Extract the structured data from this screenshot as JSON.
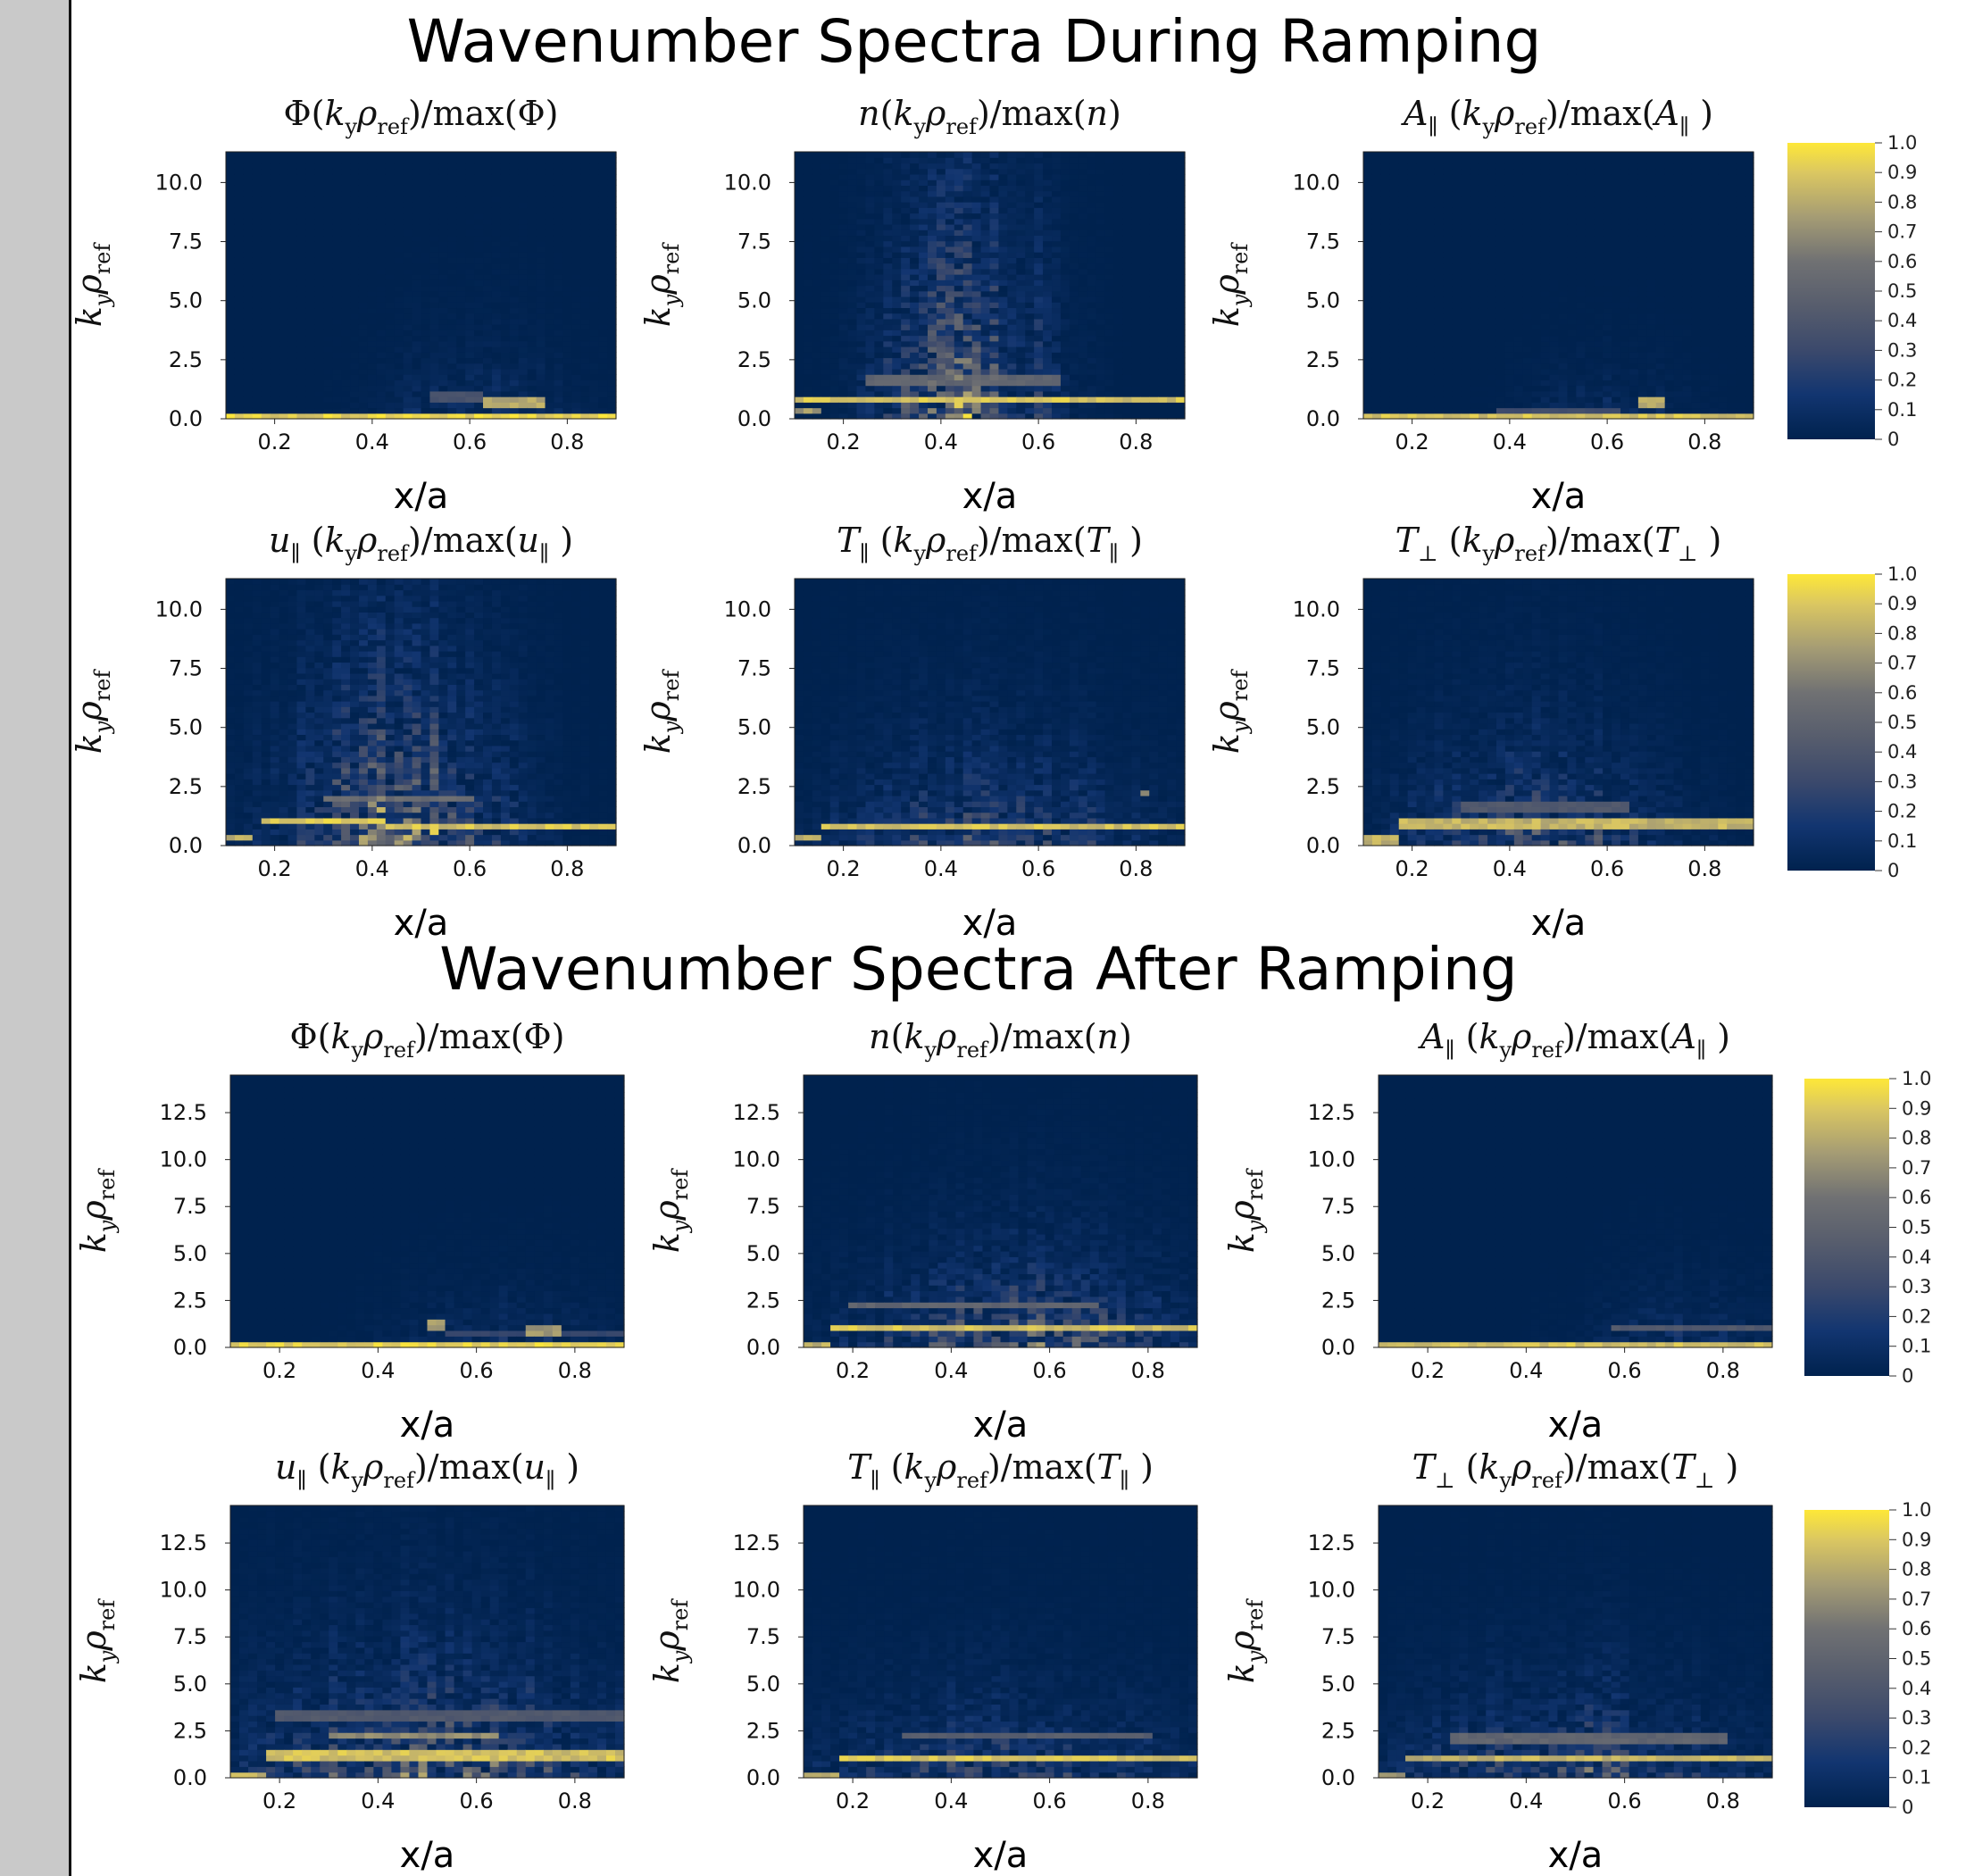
{
  "sections": [
    {
      "title": "Wavenumber Spectra During Ramping"
    },
    {
      "title": "Wavenumber Spectra  After Ramping"
    }
  ],
  "colors": {
    "low": "#00224e",
    "high": "#fee838"
  },
  "chart_data": [
    {
      "type": "heatmap",
      "title": "Φ(k_yρ_ref)/max(Φ)",
      "section": "During Ramping",
      "xlabel": "x/a",
      "ylabel": "k_yρ_ref",
      "xlim": [
        0.1,
        0.9
      ],
      "ylim": [
        0,
        11.3
      ],
      "xticks": [
        "0.2",
        "0.4",
        "0.6",
        "0.8"
      ],
      "yticks": [
        "0.0",
        "2.5",
        "5.0",
        "7.5",
        "10.0"
      ],
      "ytick_values": [
        0,
        2.5,
        5,
        7.5,
        10
      ],
      "colorbar": false,
      "features": [
        {
          "kind": "band",
          "x": [
            0.1,
            0.9
          ],
          "ky": 0.05,
          "value": 1.0
        },
        {
          "kind": "band",
          "x": [
            0.52,
            0.62
          ],
          "ky": 0.9,
          "value": 0.4
        },
        {
          "kind": "band",
          "x": [
            0.62,
            0.76
          ],
          "ky": 0.7,
          "value": 0.85
        }
      ],
      "noise": {
        "x_center": 0.62,
        "x_width": 0.18,
        "ky_scale": 2,
        "amp": 0.15
      }
    },
    {
      "type": "heatmap",
      "title": "n(k_yρ_ref)/max(n)",
      "section": "During Ramping",
      "xlabel": "x/a",
      "ylabel": "k_yρ_ref",
      "xlim": [
        0.1,
        0.9
      ],
      "ylim": [
        0,
        11.3
      ],
      "xticks": [
        "0.2",
        "0.4",
        "0.6",
        "0.8"
      ],
      "yticks": [
        "0.0",
        "2.5",
        "5.0",
        "7.5",
        "10.0"
      ],
      "ytick_values": [
        0,
        2.5,
        5,
        7.5,
        10
      ],
      "colorbar": false,
      "features": [
        {
          "kind": "band",
          "x": [
            0.1,
            0.9
          ],
          "ky": 0.8,
          "value": 0.95
        },
        {
          "kind": "band",
          "x": [
            0.1,
            0.15
          ],
          "ky": 0.3,
          "value": 0.8
        },
        {
          "kind": "band",
          "x": [
            0.25,
            0.65
          ],
          "ky": 1.7,
          "value": 0.55
        }
      ],
      "noise": {
        "x_center": 0.45,
        "x_width": 0.15,
        "ky_scale": 6,
        "amp": 0.6
      }
    },
    {
      "type": "heatmap",
      "title": "A∥(k_yρ_ref)/max(A∥)",
      "section": "During Ramping",
      "xlabel": "x/a",
      "ylabel": "k_yρ_ref",
      "xlim": [
        0.1,
        0.9
      ],
      "ylim": [
        0,
        11.3
      ],
      "xticks": [
        "0.2",
        "0.4",
        "0.6",
        "0.8"
      ],
      "yticks": [
        "0.0",
        "2.5",
        "5.0",
        "7.5",
        "10.0"
      ],
      "ytick_values": [
        0,
        2.5,
        5,
        7.5,
        10
      ],
      "colorbar": true,
      "colorbar_ticks": [
        "0",
        "0.1",
        "0.2",
        "0.3",
        "0.4",
        "0.5",
        "0.6",
        "0.7",
        "0.8",
        "0.9",
        "1.0"
      ],
      "features": [
        {
          "kind": "band",
          "x": [
            0.1,
            0.9
          ],
          "ky": 0.05,
          "value": 0.95
        },
        {
          "kind": "band",
          "x": [
            0.38,
            0.62
          ],
          "ky": 0.3,
          "value": 0.35
        },
        {
          "kind": "band",
          "x": [
            0.66,
            0.72
          ],
          "ky": 0.7,
          "value": 0.9
        }
      ],
      "noise": {
        "x_center": 0.6,
        "x_width": 0.15,
        "ky_scale": 1.5,
        "amp": 0.12
      }
    },
    {
      "type": "heatmap",
      "title": "u∥(k_yρ_ref)/max(u∥)",
      "section": "During Ramping",
      "xlabel": "x/a",
      "ylabel": "k_yρ_ref",
      "xlim": [
        0.1,
        0.9
      ],
      "ylim": [
        0,
        11.3
      ],
      "xticks": [
        "0.2",
        "0.4",
        "0.6",
        "0.8"
      ],
      "yticks": [
        "0.0",
        "2.5",
        "5.0",
        "7.5",
        "10.0"
      ],
      "ytick_values": [
        0,
        2.5,
        5,
        7.5,
        10
      ],
      "colorbar": false,
      "features": [
        {
          "kind": "band",
          "x": [
            0.1,
            0.15
          ],
          "ky": 0.3,
          "value": 0.9
        },
        {
          "kind": "band",
          "x": [
            0.18,
            0.42
          ],
          "ky": 1.1,
          "value": 1.0
        },
        {
          "kind": "band",
          "x": [
            0.42,
            0.9
          ],
          "ky": 0.8,
          "value": 0.95
        },
        {
          "kind": "band",
          "x": [
            0.3,
            0.6
          ],
          "ky": 2.0,
          "value": 0.6
        }
      ],
      "noise": {
        "x_center": 0.45,
        "x_width": 0.2,
        "ky_scale": 5,
        "amp": 0.6
      }
    },
    {
      "type": "heatmap",
      "title": "T∥(k_yρ_ref)/max(T∥)",
      "section": "During Ramping",
      "xlabel": "x/a",
      "ylabel": "k_yρ_ref",
      "xlim": [
        0.1,
        0.9
      ],
      "ylim": [
        0,
        11.3
      ],
      "xticks": [
        "0.2",
        "0.4",
        "0.6",
        "0.8"
      ],
      "yticks": [
        "0.0",
        "2.5",
        "5.0",
        "7.5",
        "10.0"
      ],
      "ytick_values": [
        0,
        2.5,
        5,
        7.5,
        10
      ],
      "colorbar": false,
      "features": [
        {
          "kind": "band",
          "x": [
            0.1,
            0.15
          ],
          "ky": 0.3,
          "value": 0.85
        },
        {
          "kind": "band",
          "x": [
            0.15,
            0.9
          ],
          "ky": 0.8,
          "value": 0.95
        },
        {
          "kind": "band",
          "x": [
            0.81,
            0.82
          ],
          "ky": 2.2,
          "value": 0.7
        }
      ],
      "noise": {
        "x_center": 0.5,
        "x_width": 0.3,
        "ky_scale": 3,
        "amp": 0.3
      }
    },
    {
      "type": "heatmap",
      "title": "T⊥(k_yρ_ref)/max(T⊥)",
      "section": "During Ramping",
      "xlabel": "x/a",
      "ylabel": "k_yρ_ref",
      "xlim": [
        0.1,
        0.9
      ],
      "ylim": [
        0,
        11.3
      ],
      "xticks": [
        "0.2",
        "0.4",
        "0.6",
        "0.8"
      ],
      "yticks": [
        "0.0",
        "2.5",
        "5.0",
        "7.5",
        "10.0"
      ],
      "ytick_values": [
        0,
        2.5,
        5,
        7.5,
        10
      ],
      "colorbar": true,
      "colorbar_ticks": [
        "0",
        "0.1",
        "0.2",
        "0.3",
        "0.4",
        "0.5",
        "0.6",
        "0.7",
        "0.8",
        "0.9",
        "1.0"
      ],
      "features": [
        {
          "kind": "band",
          "x": [
            0.1,
            0.18
          ],
          "ky": 0.2,
          "value": 0.9
        },
        {
          "kind": "band",
          "x": [
            0.18,
            0.9
          ],
          "ky": 0.9,
          "value": 0.9
        },
        {
          "kind": "band",
          "x": [
            0.3,
            0.65
          ],
          "ky": 1.6,
          "value": 0.45
        }
      ],
      "noise": {
        "x_center": 0.45,
        "x_width": 0.25,
        "ky_scale": 3,
        "amp": 0.35
      }
    },
    {
      "type": "heatmap",
      "title": "Φ(k_yρ_ref)/max(Φ)",
      "section": "After Ramping",
      "xlabel": "x/a",
      "ylabel": "k_yρ_ref",
      "xlim": [
        0.1,
        0.9
      ],
      "ylim": [
        0,
        14.5
      ],
      "xticks": [
        "0.2",
        "0.4",
        "0.6",
        "0.8"
      ],
      "yticks": [
        "0.0",
        "2.5",
        "5.0",
        "7.5",
        "10.0",
        "12.5"
      ],
      "ytick_values": [
        0,
        2.5,
        5,
        7.5,
        10,
        12.5
      ],
      "colorbar": false,
      "features": [
        {
          "kind": "band",
          "x": [
            0.1,
            0.9
          ],
          "ky": 0.05,
          "value": 1.0
        },
        {
          "kind": "band",
          "x": [
            0.5,
            0.54
          ],
          "ky": 1.2,
          "value": 0.8
        },
        {
          "kind": "band",
          "x": [
            0.7,
            0.78
          ],
          "ky": 0.9,
          "value": 0.8
        },
        {
          "kind": "band",
          "x": [
            0.54,
            0.9
          ],
          "ky": 0.8,
          "value": 0.3
        }
      ],
      "noise": {
        "x_center": 0.65,
        "x_width": 0.2,
        "ky_scale": 2,
        "amp": 0.15
      }
    },
    {
      "type": "heatmap",
      "title": "n(k_yρ_ref)/max(n)",
      "section": "After Ramping",
      "xlabel": "x/a",
      "ylabel": "k_yρ_ref",
      "xlim": [
        0.1,
        0.9
      ],
      "ylim": [
        0,
        14.5
      ],
      "xticks": [
        "0.2",
        "0.4",
        "0.6",
        "0.8"
      ],
      "yticks": [
        "0.0",
        "2.5",
        "5.0",
        "7.5",
        "10.0",
        "12.5"
      ],
      "ytick_values": [
        0,
        2.5,
        5,
        7.5,
        10,
        12.5
      ],
      "colorbar": false,
      "features": [
        {
          "kind": "band",
          "x": [
            0.1,
            0.16
          ],
          "ky": 0.2,
          "value": 0.9
        },
        {
          "kind": "band",
          "x": [
            0.16,
            0.9
          ],
          "ky": 1.1,
          "value": 0.95
        },
        {
          "kind": "band",
          "x": [
            0.2,
            0.7
          ],
          "ky": 2.2,
          "value": 0.55
        }
      ],
      "noise": {
        "x_center": 0.55,
        "x_width": 0.3,
        "ky_scale": 3,
        "amp": 0.45
      }
    },
    {
      "type": "heatmap",
      "title": "A∥(k_yρ_ref)/max(A∥)",
      "section": "After Ramping",
      "xlabel": "x/a",
      "ylabel": "k_yρ_ref",
      "xlim": [
        0.1,
        0.9
      ],
      "ylim": [
        0,
        14.5
      ],
      "xticks": [
        "0.2",
        "0.4",
        "0.6",
        "0.8"
      ],
      "yticks": [
        "0.0",
        "2.5",
        "5.0",
        "7.5",
        "10.0",
        "12.5"
      ],
      "ytick_values": [
        0,
        2.5,
        5,
        7.5,
        10,
        12.5
      ],
      "colorbar": true,
      "colorbar_ticks": [
        "0",
        "0.1",
        "0.2",
        "0.3",
        "0.4",
        "0.5",
        "0.6",
        "0.7",
        "0.8",
        "0.9",
        "1.0"
      ],
      "features": [
        {
          "kind": "band",
          "x": [
            0.1,
            0.9
          ],
          "ky": 0.05,
          "value": 0.95
        },
        {
          "kind": "band",
          "x": [
            0.58,
            0.9
          ],
          "ky": 1.0,
          "value": 0.45
        }
      ],
      "noise": {
        "x_center": 0.72,
        "x_width": 0.18,
        "ky_scale": 2,
        "amp": 0.15
      }
    },
    {
      "type": "heatmap",
      "title": "u∥(k_yρ_ref)/max(u∥)",
      "section": "After Ramping",
      "xlabel": "x/a",
      "ylabel": "k_yρ_ref",
      "xlim": [
        0.1,
        0.9
      ],
      "ylim": [
        0,
        14.5
      ],
      "xticks": [
        "0.2",
        "0.4",
        "0.6",
        "0.8"
      ],
      "yticks": [
        "0.0",
        "2.5",
        "5.0",
        "7.5",
        "10.0",
        "12.5"
      ],
      "ytick_values": [
        0,
        2.5,
        5,
        7.5,
        10,
        12.5
      ],
      "colorbar": false,
      "features": [
        {
          "kind": "band",
          "x": [
            0.1,
            0.18
          ],
          "ky": 0.2,
          "value": 0.9
        },
        {
          "kind": "band",
          "x": [
            0.18,
            0.9
          ],
          "ky": 1.2,
          "value": 0.95
        },
        {
          "kind": "band",
          "x": [
            0.3,
            0.65
          ],
          "ky": 2.3,
          "value": 0.75
        },
        {
          "kind": "band",
          "x": [
            0.2,
            0.9
          ],
          "ky": 3.3,
          "value": 0.45
        }
      ],
      "noise": {
        "x_center": 0.5,
        "x_width": 0.35,
        "ky_scale": 4,
        "amp": 0.5
      }
    },
    {
      "type": "heatmap",
      "title": "T∥(k_yρ_ref)/max(T∥)",
      "section": "After Ramping",
      "xlabel": "x/a",
      "ylabel": "k_yρ_ref",
      "xlim": [
        0.1,
        0.9
      ],
      "ylim": [
        0,
        14.5
      ],
      "xticks": [
        "0.2",
        "0.4",
        "0.6",
        "0.8"
      ],
      "yticks": [
        "0.0",
        "2.5",
        "5.0",
        "7.5",
        "10.0",
        "12.5"
      ],
      "ytick_values": [
        0,
        2.5,
        5,
        7.5,
        10,
        12.5
      ],
      "colorbar": false,
      "features": [
        {
          "kind": "band",
          "x": [
            0.1,
            0.18
          ],
          "ky": 0.2,
          "value": 0.85
        },
        {
          "kind": "band",
          "x": [
            0.18,
            0.9
          ],
          "ky": 1.1,
          "value": 0.95
        },
        {
          "kind": "band",
          "x": [
            0.3,
            0.8
          ],
          "ky": 2.3,
          "value": 0.5
        }
      ],
      "noise": {
        "x_center": 0.5,
        "x_width": 0.35,
        "ky_scale": 3,
        "amp": 0.3
      }
    },
    {
      "type": "heatmap",
      "title": "T⊥(k_yρ_ref)/max(T⊥)",
      "section": "After Ramping",
      "xlabel": "x/a",
      "ylabel": "k_yρ_ref",
      "xlim": [
        0.1,
        0.9
      ],
      "ylim": [
        0,
        14.5
      ],
      "xticks": [
        "0.2",
        "0.4",
        "0.6",
        "0.8"
      ],
      "yticks": [
        "0.0",
        "2.5",
        "5.0",
        "7.5",
        "10.0",
        "12.5"
      ],
      "ytick_values": [
        0,
        2.5,
        5,
        7.5,
        10,
        12.5
      ],
      "colorbar": true,
      "colorbar_ticks": [
        "0",
        "0.1",
        "0.2",
        "0.3",
        "0.4",
        "0.5",
        "0.6",
        "0.7",
        "0.8",
        "0.9",
        "1.0"
      ],
      "features": [
        {
          "kind": "band",
          "x": [
            0.1,
            0.15
          ],
          "ky": 0.1,
          "value": 0.8
        },
        {
          "kind": "band",
          "x": [
            0.15,
            0.9
          ],
          "ky": 1.1,
          "value": 0.9
        },
        {
          "kind": "band",
          "x": [
            0.25,
            0.8
          ],
          "ky": 2.1,
          "value": 0.55
        }
      ],
      "noise": {
        "x_center": 0.5,
        "x_width": 0.3,
        "ky_scale": 3,
        "amp": 0.4
      }
    }
  ]
}
